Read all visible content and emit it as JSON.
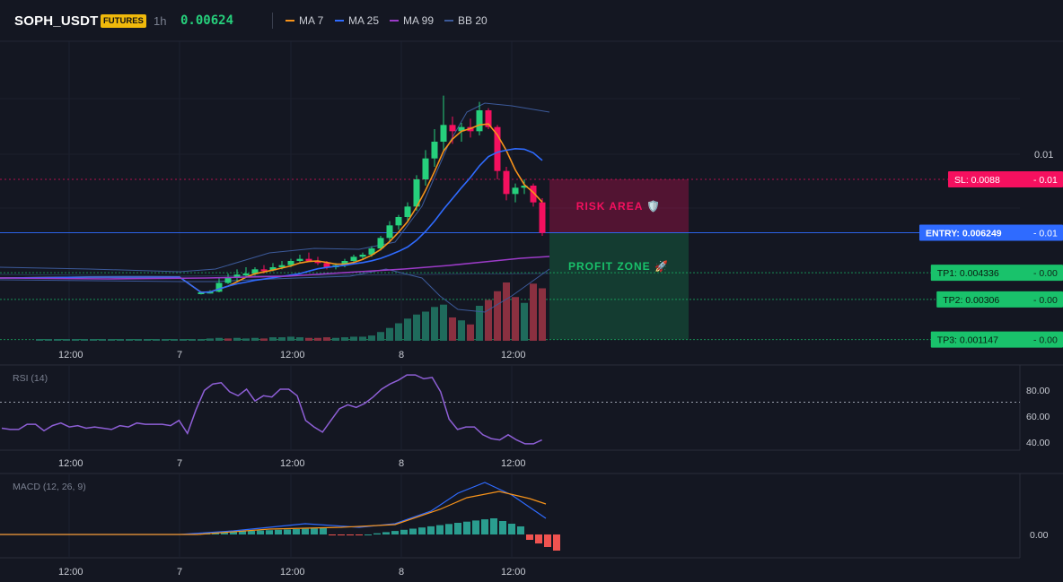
{
  "header": {
    "symbol": "SOPH_USDT",
    "badge": "FUTURES",
    "timeframe": "1h",
    "last_price": "0.00624",
    "legend": [
      {
        "label": "MA 7",
        "color": "#f7931a"
      },
      {
        "label": "MA 25",
        "color": "#2f6bff"
      },
      {
        "label": "MA 99",
        "color": "#9c3bc8"
      },
      {
        "label": "BB 20",
        "color": "#3c5a9a"
      }
    ]
  },
  "colors": {
    "up": "#26d07c",
    "down": "#f5105f",
    "vol_up": "#1f6b5c",
    "vol_down": "#8a3040"
  },
  "chart_data": [
    {
      "name": "price",
      "type": "candlestick",
      "x_ticks": [
        "12:00",
        "7",
        "12:00",
        "8",
        "12:00"
      ],
      "y_ticks": [
        "0.01"
      ],
      "candles": [
        {
          "t": 0,
          "o": 0.00335,
          "h": 0.00345,
          "l": 0.0033,
          "c": 0.0034
        },
        {
          "t": 1,
          "o": 0.0034,
          "h": 0.0035,
          "l": 0.00334,
          "c": 0.00343
        },
        {
          "t": 2,
          "o": 0.00343,
          "h": 0.0041,
          "l": 0.0034,
          "c": 0.00385
        },
        {
          "t": 3,
          "o": 0.00385,
          "h": 0.0043,
          "l": 0.0038,
          "c": 0.0041
        },
        {
          "t": 4,
          "o": 0.0041,
          "h": 0.0045,
          "l": 0.0039,
          "c": 0.00425
        },
        {
          "t": 5,
          "o": 0.00425,
          "h": 0.0046,
          "l": 0.0041,
          "c": 0.0043
        },
        {
          "t": 6,
          "o": 0.0043,
          "h": 0.0046,
          "l": 0.0042,
          "c": 0.0045
        },
        {
          "t": 7,
          "o": 0.0045,
          "h": 0.0047,
          "l": 0.0043,
          "c": 0.00445
        },
        {
          "t": 8,
          "o": 0.00445,
          "h": 0.0048,
          "l": 0.0044,
          "c": 0.0046
        },
        {
          "t": 9,
          "o": 0.0046,
          "h": 0.0049,
          "l": 0.0045,
          "c": 0.0047
        },
        {
          "t": 10,
          "o": 0.0047,
          "h": 0.005,
          "l": 0.0046,
          "c": 0.0049
        },
        {
          "t": 11,
          "o": 0.0049,
          "h": 0.0052,
          "l": 0.0048,
          "c": 0.005
        },
        {
          "t": 12,
          "o": 0.005,
          "h": 0.0053,
          "l": 0.0049,
          "c": 0.0049
        },
        {
          "t": 13,
          "o": 0.0049,
          "h": 0.0051,
          "l": 0.0047,
          "c": 0.0048
        },
        {
          "t": 14,
          "o": 0.0048,
          "h": 0.0049,
          "l": 0.0045,
          "c": 0.0046
        },
        {
          "t": 15,
          "o": 0.0046,
          "h": 0.0048,
          "l": 0.0045,
          "c": 0.0047
        },
        {
          "t": 16,
          "o": 0.0047,
          "h": 0.005,
          "l": 0.0046,
          "c": 0.0049
        },
        {
          "t": 17,
          "o": 0.0049,
          "h": 0.0052,
          "l": 0.0048,
          "c": 0.0051
        },
        {
          "t": 18,
          "o": 0.0051,
          "h": 0.0053,
          "l": 0.005,
          "c": 0.0052
        },
        {
          "t": 19,
          "o": 0.0052,
          "h": 0.0056,
          "l": 0.0051,
          "c": 0.0055
        },
        {
          "t": 20,
          "o": 0.0055,
          "h": 0.0061,
          "l": 0.0054,
          "c": 0.006
        },
        {
          "t": 21,
          "o": 0.006,
          "h": 0.0068,
          "l": 0.0058,
          "c": 0.0066
        },
        {
          "t": 22,
          "o": 0.0066,
          "h": 0.0071,
          "l": 0.0064,
          "c": 0.007
        },
        {
          "t": 23,
          "o": 0.007,
          "h": 0.0077,
          "l": 0.0068,
          "c": 0.0075
        },
        {
          "t": 24,
          "o": 0.0075,
          "h": 0.009,
          "l": 0.0073,
          "c": 0.0088
        },
        {
          "t": 25,
          "o": 0.0088,
          "h": 0.0102,
          "l": 0.0085,
          "c": 0.0098
        },
        {
          "t": 26,
          "o": 0.0098,
          "h": 0.0112,
          "l": 0.0094,
          "c": 0.0106
        },
        {
          "t": 27,
          "o": 0.0106,
          "h": 0.0128,
          "l": 0.0101,
          "c": 0.0114
        },
        {
          "t": 28,
          "o": 0.0114,
          "h": 0.0118,
          "l": 0.0105,
          "c": 0.0111
        },
        {
          "t": 29,
          "o": 0.0111,
          "h": 0.0115,
          "l": 0.0106,
          "c": 0.0113
        },
        {
          "t": 30,
          "o": 0.0113,
          "h": 0.0117,
          "l": 0.0108,
          "c": 0.0111
        },
        {
          "t": 31,
          "o": 0.0111,
          "h": 0.0125,
          "l": 0.0109,
          "c": 0.0121
        },
        {
          "t": 32,
          "o": 0.0121,
          "h": 0.0122,
          "l": 0.0112,
          "c": 0.0113
        },
        {
          "t": 33,
          "o": 0.0113,
          "h": 0.0114,
          "l": 0.0088,
          "c": 0.0092
        },
        {
          "t": 34,
          "o": 0.0092,
          "h": 0.0094,
          "l": 0.0078,
          "c": 0.0081
        },
        {
          "t": 35,
          "o": 0.0081,
          "h": 0.0086,
          "l": 0.0077,
          "c": 0.0084
        },
        {
          "t": 36,
          "o": 0.0084,
          "h": 0.0088,
          "l": 0.0081,
          "c": 0.0085
        },
        {
          "t": 37,
          "o": 0.0085,
          "h": 0.0086,
          "l": 0.0075,
          "c": 0.0077
        },
        {
          "t": 38,
          "o": 0.0077,
          "h": 0.0079,
          "l": 0.0061,
          "c": 0.00624
        }
      ],
      "volume": [
        {
          "t": 0,
          "v": 0.03,
          "dir": "up"
        },
        {
          "t": 1,
          "v": 0.04,
          "dir": "up"
        },
        {
          "t": 2,
          "v": 0.05,
          "dir": "up"
        },
        {
          "t": 3,
          "v": 0.04,
          "dir": "down"
        },
        {
          "t": 4,
          "v": 0.05,
          "dir": "up"
        },
        {
          "t": 5,
          "v": 0.04,
          "dir": "up"
        },
        {
          "t": 6,
          "v": 0.05,
          "dir": "up"
        },
        {
          "t": 7,
          "v": 0.04,
          "dir": "down"
        },
        {
          "t": 8,
          "v": 0.06,
          "dir": "up"
        },
        {
          "t": 9,
          "v": 0.06,
          "dir": "up"
        },
        {
          "t": 10,
          "v": 0.07,
          "dir": "up"
        },
        {
          "t": 11,
          "v": 0.06,
          "dir": "up"
        },
        {
          "t": 12,
          "v": 0.05,
          "dir": "down"
        },
        {
          "t": 13,
          "v": 0.05,
          "dir": "down"
        },
        {
          "t": 14,
          "v": 0.06,
          "dir": "down"
        },
        {
          "t": 15,
          "v": 0.05,
          "dir": "up"
        },
        {
          "t": 16,
          "v": 0.06,
          "dir": "up"
        },
        {
          "t": 17,
          "v": 0.07,
          "dir": "up"
        },
        {
          "t": 18,
          "v": 0.07,
          "dir": "up"
        },
        {
          "t": 19,
          "v": 0.09,
          "dir": "up"
        },
        {
          "t": 20,
          "v": 0.15,
          "dir": "up"
        },
        {
          "t": 21,
          "v": 0.22,
          "dir": "up"
        },
        {
          "t": 22,
          "v": 0.3,
          "dir": "up"
        },
        {
          "t": 23,
          "v": 0.38,
          "dir": "up"
        },
        {
          "t": 24,
          "v": 0.45,
          "dir": "up"
        },
        {
          "t": 25,
          "v": 0.5,
          "dir": "up"
        },
        {
          "t": 26,
          "v": 0.58,
          "dir": "up"
        },
        {
          "t": 27,
          "v": 0.62,
          "dir": "up"
        },
        {
          "t": 28,
          "v": 0.4,
          "dir": "down"
        },
        {
          "t": 29,
          "v": 0.35,
          "dir": "up"
        },
        {
          "t": 30,
          "v": 0.28,
          "dir": "down"
        },
        {
          "t": 31,
          "v": 0.6,
          "dir": "up"
        },
        {
          "t": 32,
          "v": 0.7,
          "dir": "down"
        },
        {
          "t": 33,
          "v": 0.85,
          "dir": "down"
        },
        {
          "t": 34,
          "v": 1.0,
          "dir": "down"
        },
        {
          "t": 35,
          "v": 0.75,
          "dir": "down"
        },
        {
          "t": 36,
          "v": 0.65,
          "dir": "up"
        },
        {
          "t": 37,
          "v": 0.98,
          "dir": "down"
        },
        {
          "t": 38,
          "v": 0.9,
          "dir": "down"
        }
      ],
      "levels": [
        {
          "label": "SL: 0.0088",
          "value": 0.0088,
          "color": "#f5105f"
        },
        {
          "label": "ENTRY: 0.006249",
          "value": 0.006249,
          "color": "#2f6bff"
        },
        {
          "label": "TP1: 0.004336",
          "value": 0.004336,
          "color": "#19c26b"
        },
        {
          "label": "TP2: 0.00306",
          "value": 0.00306,
          "color": "#19c26b"
        },
        {
          "label": "TP3: 0.001147",
          "value": 0.001147,
          "color": "#19c26b"
        }
      ],
      "level_suffix": [
        "- 0.01",
        "- 0.01",
        "- 0.00",
        "- 0.00",
        "- 0.00"
      ],
      "zones": [
        {
          "label": "RISK AREA 🛡️",
          "from": 0.006249,
          "to": 0.0088,
          "color": "#f5105f"
        },
        {
          "label": "PROFIT ZONE 🚀",
          "from": 0.001147,
          "to": 0.006249,
          "color": "#19c26b"
        }
      ]
    },
    {
      "name": "rsi",
      "type": "line",
      "title": "RSI (14)",
      "y_ticks": [
        "80.00",
        "60.00",
        "40.00"
      ],
      "ylim": [
        36,
        96
      ],
      "overbought": 70,
      "values": [
        50,
        49,
        49,
        53,
        53,
        48,
        52,
        54,
        51,
        52,
        50,
        51,
        50,
        49,
        52,
        51,
        54,
        53,
        53,
        53,
        52,
        56,
        46,
        64,
        79,
        84,
        85,
        78,
        75,
        80,
        71,
        75,
        74,
        80,
        80,
        75,
        56,
        51,
        47,
        56,
        65,
        68,
        66,
        69,
        74,
        80,
        84,
        87,
        91,
        91,
        88,
        89,
        78,
        57,
        49,
        51,
        51,
        45,
        42,
        41,
        45,
        41,
        38,
        38,
        41
      ]
    },
    {
      "name": "macd",
      "type": "line+histogram",
      "title": "MACD (12, 26, 9)",
      "y_ticks": [
        "0.00"
      ]
    }
  ]
}
